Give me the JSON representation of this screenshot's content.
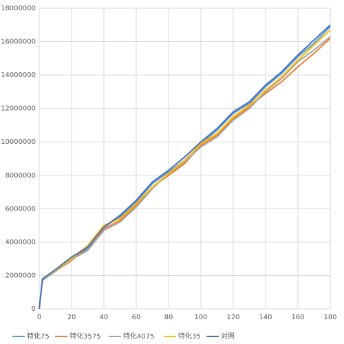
{
  "chart_data": {
    "type": "line",
    "x": [
      0,
      2,
      10,
      20,
      30,
      40,
      50,
      60,
      70,
      80,
      90,
      100,
      110,
      120,
      130,
      140,
      150,
      160,
      170,
      180
    ],
    "series": [
      {
        "name": "特化75",
        "color": "#5b9bd5",
        "values": [
          0,
          1800000,
          2300000,
          3000000,
          3600000,
          4900000,
          5500000,
          6400000,
          7500000,
          8200000,
          8900000,
          9900000,
          10700000,
          11700000,
          12300000,
          13300000,
          14100000,
          15100000,
          15900000,
          16900000
        ]
      },
      {
        "name": "特化3575",
        "color": "#ed7d31",
        "values": [
          0,
          1750000,
          2250000,
          2900000,
          3700000,
          4800000,
          5300000,
          6200000,
          7300000,
          8000000,
          8700000,
          9800000,
          10400000,
          11400000,
          12100000,
          12900000,
          13600000,
          14500000,
          15300000,
          16200000
        ]
      },
      {
        "name": "特化4075",
        "color": "#a5a5a5",
        "values": [
          0,
          1700000,
          2250000,
          2950000,
          3500000,
          4700000,
          5200000,
          6100000,
          7200000,
          8100000,
          8800000,
          9700000,
          10300000,
          11300000,
          12000000,
          13000000,
          13800000,
          14800000,
          15500000,
          16300000
        ]
      },
      {
        "name": "特化35",
        "color": "#ffc000",
        "values": [
          0,
          1800000,
          2300000,
          3000000,
          3800000,
          5000000,
          5400000,
          6300000,
          7300000,
          8100000,
          8900000,
          9900000,
          10500000,
          11500000,
          12200000,
          13100000,
          13900000,
          14900000,
          15800000,
          16700000
        ]
      },
      {
        "name": "对照",
        "color": "#4472c4",
        "values": [
          0,
          1800000,
          2350000,
          3100000,
          3700000,
          4900000,
          5600000,
          6500000,
          7600000,
          8300000,
          9100000,
          10000000,
          10800000,
          11800000,
          12400000,
          13400000,
          14200000,
          15200000,
          16100000,
          17000000
        ]
      }
    ],
    "xlim": [
      0,
      180
    ],
    "xticks": [
      0,
      20,
      40,
      60,
      80,
      100,
      120,
      140,
      160,
      180
    ],
    "ylim": [
      0,
      18000000
    ],
    "yticks": [
      0,
      2000000,
      4000000,
      6000000,
      8000000,
      10000000,
      12000000,
      14000000,
      16000000,
      18000000
    ],
    "grid": true,
    "legend": "bottom"
  }
}
